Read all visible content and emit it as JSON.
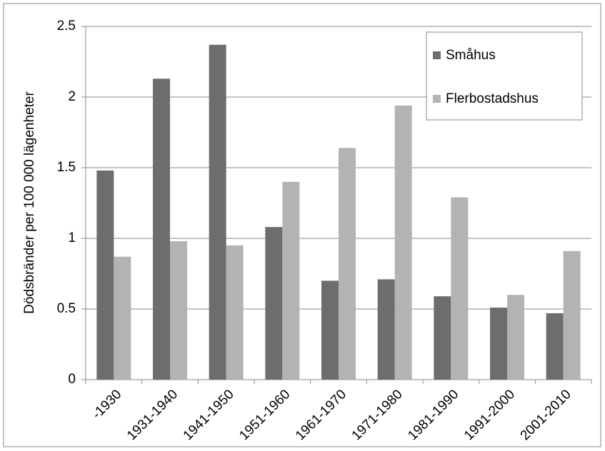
{
  "chart_data": {
    "type": "bar",
    "y_label": "Dödsbränder per 100 000 lägenheter",
    "categories": [
      "-1930",
      "1931-1940",
      "1941-1950",
      "1951-1960",
      "1961-1970",
      "1971-1980",
      "1981-1990",
      "1991-2000",
      "2001-2010"
    ],
    "series": [
      {
        "name": "Småhus",
        "color": "#6d6d6d",
        "values": [
          1.48,
          2.13,
          2.37,
          1.08,
          0.7,
          0.71,
          0.59,
          0.51,
          0.47
        ]
      },
      {
        "name": "Flerbostadshus",
        "color": "#b3b3b3",
        "values": [
          0.87,
          0.98,
          0.95,
          1.4,
          1.64,
          1.94,
          1.29,
          0.6,
          0.91
        ]
      }
    ],
    "ylim": [
      0,
      2.5
    ],
    "yticks": [
      0,
      0.5,
      1,
      1.5,
      2,
      2.5
    ],
    "grid": true,
    "legend": "upper right"
  }
}
